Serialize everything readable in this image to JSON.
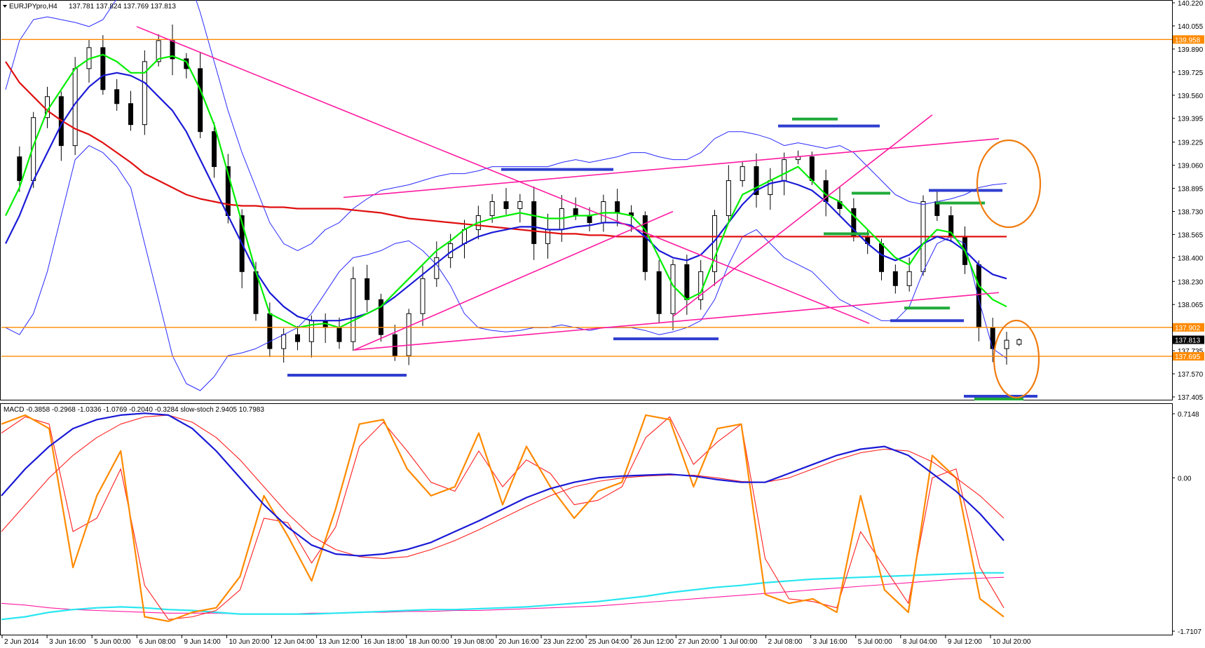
{
  "header": {
    "symbol_label": "EURJPYpro,H4",
    "ohlc_label": "137.781 137.824 137.769 137.813"
  },
  "indicator_header": "MACD -0.3858 -0.2968 -1.0336 -1.0769 -0.2040 -0.3284 slow-stoch 2.9405 10.7983",
  "colors": {
    "bull_candle": "#ffffff",
    "bear_candle": "#000000",
    "ema_fast": "#00ee00",
    "ema_mid": "#1a1ad6",
    "ema_slow": "#e01010",
    "bollinger_outer": "#2a2aff",
    "envelope": "#ff2020",
    "trendline": "#ff1aa0",
    "level_line": "#ff8a00",
    "marker_blue": "#2f3ecf",
    "marker_green": "#1faa3a",
    "circle": "#f07c10",
    "macd_main": "#1a1ad6",
    "macd_signal": "#ff2020",
    "stoch": "#ff8a00",
    "long_ma_cyan": "#28e6f0",
    "long_ma_pink": "#ff1aa0"
  },
  "chart_data": [
    {
      "type": "candlestick",
      "name": "EURJPYpro,H4",
      "ylim": [
        137.405,
        140.22
      ],
      "y_ticks": [
        "140.220",
        "140.055",
        "139.890",
        "139.725",
        "139.560",
        "139.395",
        "139.225",
        "139.060",
        "138.895",
        "138.730",
        "138.565",
        "138.400",
        "138.230",
        "138.065",
        "137.902",
        "137.735",
        "137.570",
        "137.405"
      ],
      "level_lines": [
        {
          "value": 139.958,
          "label": "139.958"
        },
        {
          "value": 137.902,
          "label": "137.902"
        },
        {
          "value": 137.695,
          "label": "137.695"
        }
      ],
      "current_price": {
        "value": 137.813,
        "label": "137.813"
      },
      "ohlc_last": {
        "open": 137.781,
        "high": 137.824,
        "low": 137.769,
        "close": 137.813
      },
      "x_labels": [
        "2 Jun 2014",
        "3 Jun 16:00",
        "5 Jun 00:00",
        "6 Jun 08:00",
        "9 Jun 14:00",
        "10 Jun 20:00",
        "12 Jun 04:00",
        "13 Jun 12:00",
        "16 Jun 18:00",
        "18 Jun 00:00",
        "19 Jun 08:00",
        "20 Jun 16:00",
        "23 Jun 22:00",
        "25 Jun 04:00",
        "26 Jun 12:00",
        "27 Jun 20:00",
        "1 Jul 00:00",
        "2 Jul 08:00",
        "3 Jul 16:00",
        "5 Jul 00:00",
        "8 Jul 04:00",
        "9 Jul 12:00",
        "10 Jul 20:00"
      ],
      "close_path": [
        139.12,
        138.95,
        139.4,
        139.55,
        139.2,
        139.75,
        139.9,
        139.6,
        139.5,
        139.35,
        139.8,
        139.95,
        139.82,
        139.75,
        139.3,
        139.05,
        138.7,
        138.3,
        138.0,
        137.75,
        137.85,
        137.8,
        137.95,
        137.9,
        137.8,
        138.25,
        138.1,
        137.85,
        137.7,
        138.0,
        138.25,
        138.4,
        138.5,
        138.6,
        138.7,
        138.8,
        138.75,
        138.8,
        138.5,
        138.6,
        138.75,
        138.7,
        138.65,
        138.8,
        138.72,
        138.7,
        138.3,
        138.0,
        138.35,
        138.1,
        138.3,
        138.7,
        138.95,
        139.05,
        138.85,
        138.95,
        139.1,
        139.12,
        138.95,
        138.8,
        138.75,
        138.55,
        138.5,
        138.3,
        138.2,
        138.3,
        138.8,
        138.7,
        138.55,
        138.35,
        137.9,
        137.75,
        137.81
      ],
      "ema_fast": [
        138.7,
        138.9,
        139.2,
        139.45,
        139.6,
        139.75,
        139.82,
        139.85,
        139.8,
        139.72,
        139.72,
        139.82,
        139.84,
        139.8,
        139.6,
        139.35,
        139.0,
        138.65,
        138.3,
        138.0,
        137.95,
        137.9,
        137.92,
        137.93,
        137.9,
        137.95,
        138.0,
        138.05,
        138.15,
        138.25,
        138.35,
        138.45,
        138.52,
        138.6,
        138.65,
        138.68,
        138.7,
        138.72,
        138.7,
        138.68,
        138.68,
        138.7,
        138.7,
        138.72,
        138.72,
        138.7,
        138.6,
        138.4,
        138.2,
        138.1,
        138.15,
        138.4,
        138.65,
        138.85,
        138.9,
        138.95,
        139.0,
        139.05,
        138.95,
        138.85,
        138.8,
        138.7,
        138.6,
        138.5,
        138.4,
        138.35,
        138.5,
        138.6,
        138.58,
        138.45,
        138.2,
        138.1,
        138.05
      ],
      "ema_mid": [
        138.5,
        138.7,
        138.95,
        139.15,
        139.35,
        139.5,
        139.62,
        139.7,
        139.72,
        139.7,
        139.65,
        139.55,
        139.45,
        139.3,
        139.1,
        138.9,
        138.7,
        138.5,
        138.3,
        138.15,
        138.05,
        137.98,
        137.95,
        137.95,
        137.95,
        137.97,
        138.0,
        138.05,
        138.12,
        138.2,
        138.28,
        138.36,
        138.44,
        138.5,
        138.55,
        138.58,
        138.6,
        138.62,
        138.62,
        138.6,
        138.6,
        138.62,
        138.63,
        138.65,
        138.65,
        138.63,
        138.55,
        138.45,
        138.4,
        138.38,
        138.42,
        138.52,
        138.65,
        138.78,
        138.88,
        138.93,
        138.95,
        138.92,
        138.88,
        138.8,
        138.7,
        138.6,
        138.5,
        138.42,
        138.38,
        138.42,
        138.5,
        138.55,
        138.52,
        138.45,
        138.35,
        138.28,
        138.25
      ],
      "ema_slow": [
        139.8,
        139.65,
        139.55,
        139.45,
        139.38,
        139.32,
        139.28,
        139.22,
        139.15,
        139.08,
        139.0,
        138.95,
        138.9,
        138.85,
        138.82,
        138.8,
        138.78,
        138.77,
        138.77,
        138.76,
        138.76,
        138.75,
        138.75,
        138.75,
        138.75,
        138.74,
        138.73,
        138.72,
        138.7,
        138.68,
        138.67,
        138.66,
        138.65,
        138.64,
        138.63,
        138.62,
        138.61,
        138.6,
        138.59,
        138.58,
        138.57,
        138.57,
        138.56,
        138.56,
        138.55,
        138.55,
        138.55,
        138.55,
        138.55,
        138.55,
        138.55,
        138.55,
        138.55,
        138.55,
        138.55,
        138.55,
        138.55,
        138.55,
        138.55,
        138.55,
        138.55,
        138.55,
        138.55,
        138.55,
        138.55,
        138.55,
        138.55,
        138.55,
        138.55,
        138.55,
        138.55,
        138.55,
        138.55
      ],
      "bollinger_upper": [
        139.6,
        139.95,
        140.1,
        140.12,
        140.1,
        140.08,
        140.05,
        140.1,
        140.25,
        140.4,
        140.6,
        140.7,
        140.65,
        140.45,
        140.15,
        139.8,
        139.45,
        139.15,
        138.9,
        138.65,
        138.5,
        138.45,
        138.5,
        138.6,
        138.65,
        138.75,
        138.82,
        138.88,
        138.9,
        138.92,
        138.95,
        138.98,
        139.0,
        139.0,
        139.02,
        139.05,
        139.05,
        139.05,
        139.05,
        139.05,
        139.08,
        139.1,
        139.08,
        139.1,
        139.12,
        139.15,
        139.15,
        139.12,
        139.1,
        139.1,
        139.15,
        139.25,
        139.3,
        139.3,
        139.28,
        139.25,
        139.2,
        139.22,
        139.2,
        139.18,
        139.2,
        139.15,
        139.05,
        138.95,
        138.85,
        138.8,
        138.78,
        138.8,
        138.82,
        138.85,
        138.9,
        138.92,
        138.93
      ],
      "bollinger_lower": [
        137.9,
        137.85,
        138.0,
        138.3,
        138.7,
        139.1,
        139.2,
        139.15,
        139.05,
        138.9,
        138.5,
        138.1,
        137.7,
        137.5,
        137.45,
        137.55,
        137.7,
        137.72,
        137.75,
        137.8,
        137.85,
        137.9,
        138.0,
        138.15,
        138.3,
        138.4,
        138.42,
        138.45,
        138.5,
        138.52,
        138.45,
        138.35,
        138.2,
        138.0,
        137.9,
        137.88,
        137.87,
        137.88,
        137.9,
        137.9,
        137.92,
        137.9,
        137.88,
        137.9,
        137.9,
        137.9,
        137.88,
        137.85,
        137.87,
        137.9,
        137.95,
        138.1,
        138.35,
        138.55,
        138.6,
        138.5,
        138.4,
        138.35,
        138.3,
        138.2,
        138.1,
        138.05,
        138.0,
        137.95,
        137.95,
        138.05,
        138.3,
        138.5,
        138.55,
        138.5,
        138.1,
        137.75,
        137.68
      ]
    },
    {
      "type": "line",
      "name": "MACD / slow-stoch",
      "ylim": [
        -1.7107,
        0.7148
      ],
      "y_ticks": [
        "0.7148",
        "0.00",
        "-1.7107"
      ],
      "series": [
        {
          "name": "MACD",
          "values": [
            -0.2,
            0.1,
            0.35,
            0.55,
            0.65,
            0.7,
            0.72,
            0.7,
            0.55,
            0.3,
            0.0,
            -0.3,
            -0.55,
            -0.75,
            -0.85,
            -0.87,
            -0.85,
            -0.8,
            -0.72,
            -0.6,
            -0.48,
            -0.35,
            -0.22,
            -0.12,
            -0.05,
            0.0,
            0.02,
            0.03,
            0.04,
            0.02,
            -0.02,
            -0.05,
            -0.05,
            0.05,
            0.15,
            0.25,
            0.32,
            0.35,
            0.25,
            0.05,
            -0.15,
            -0.4,
            -0.7
          ]
        },
        {
          "name": "signal",
          "values": [
            -0.6,
            -0.3,
            0.0,
            0.25,
            0.45,
            0.6,
            0.68,
            0.7,
            0.62,
            0.45,
            0.2,
            -0.1,
            -0.4,
            -0.65,
            -0.8,
            -0.88,
            -0.9,
            -0.88,
            -0.8,
            -0.7,
            -0.58,
            -0.45,
            -0.32,
            -0.2,
            -0.1,
            -0.04,
            0.0,
            0.02,
            0.03,
            0.03,
            0.0,
            -0.04,
            -0.05,
            0.0,
            0.1,
            0.2,
            0.28,
            0.32,
            0.3,
            0.18,
            0.0,
            -0.2,
            -0.45
          ]
        },
        {
          "name": "slow-stoch main",
          "values": [
            0.6,
            0.7,
            0.55,
            -1.0,
            -0.2,
            0.3,
            -1.55,
            -1.6,
            -1.5,
            -1.45,
            -1.1,
            -0.2,
            -0.65,
            -1.15,
            -0.35,
            0.6,
            0.65,
            0.1,
            -0.2,
            -0.1,
            0.5,
            -0.3,
            0.35,
            -0.1,
            -0.45,
            -0.15,
            -0.05,
            0.7,
            0.65,
            -0.1,
            0.55,
            0.6,
            -1.3,
            -1.4,
            -1.35,
            -1.5,
            -0.2,
            -1.25,
            -1.5,
            0.25,
            0.0,
            -1.35,
            -1.55
          ]
        },
        {
          "name": "slow-stoch signal",
          "values": [
            0.5,
            0.68,
            0.6,
            -0.6,
            -0.45,
            0.1,
            -1.2,
            -1.58,
            -1.55,
            -1.48,
            -1.25,
            -0.45,
            -0.5,
            -0.95,
            -0.55,
            0.35,
            0.62,
            0.3,
            -0.05,
            -0.15,
            0.3,
            -0.1,
            0.2,
            0.05,
            -0.3,
            -0.25,
            -0.1,
            0.45,
            0.68,
            0.15,
            0.4,
            0.6,
            -0.9,
            -1.35,
            -1.38,
            -1.45,
            -0.6,
            -1.0,
            -1.4,
            0.0,
            0.1,
            -1.0,
            -1.45
          ]
        },
        {
          "name": "long ma cyan",
          "values": [
            -1.58,
            -1.55,
            -1.5,
            -1.47,
            -1.45,
            -1.44,
            -1.45,
            -1.47,
            -1.48,
            -1.5,
            -1.52,
            -1.52,
            -1.52,
            -1.52,
            -1.51,
            -1.5,
            -1.49,
            -1.48,
            -1.47,
            -1.47,
            -1.46,
            -1.45,
            -1.44,
            -1.42,
            -1.4,
            -1.38,
            -1.35,
            -1.32,
            -1.28,
            -1.25,
            -1.22,
            -1.2,
            -1.17,
            -1.15,
            -1.13,
            -1.12,
            -1.11,
            -1.1,
            -1.09,
            -1.08,
            -1.07,
            -1.06,
            -1.06
          ]
        },
        {
          "name": "long ma pink",
          "values": [
            -1.4,
            -1.42,
            -1.45,
            -1.47,
            -1.48,
            -1.49,
            -1.5,
            -1.51,
            -1.51,
            -1.51,
            -1.52,
            -1.52,
            -1.52,
            -1.51,
            -1.51,
            -1.5,
            -1.5,
            -1.49,
            -1.49,
            -1.48,
            -1.48,
            -1.47,
            -1.46,
            -1.45,
            -1.44,
            -1.43,
            -1.41,
            -1.39,
            -1.37,
            -1.35,
            -1.33,
            -1.31,
            -1.29,
            -1.27,
            -1.25,
            -1.23,
            -1.21,
            -1.19,
            -1.17,
            -1.15,
            -1.13,
            -1.12,
            -1.11
          ]
        }
      ],
      "zero_line": 0.0
    }
  ]
}
